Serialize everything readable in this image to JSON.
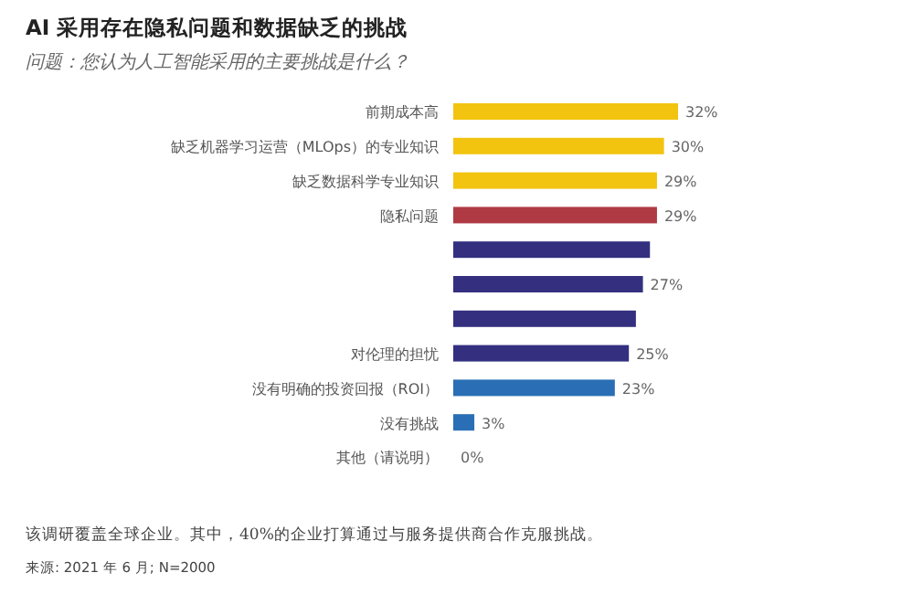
{
  "chart_data": {
    "type": "bar",
    "orientation": "horizontal",
    "title": "AI 采用存在隐私问题和数据缺乏的挑战",
    "subtitle": "问题：您认为人工智能采用的主要挑战是什么？",
    "categories": [
      "前期成本高",
      "缺乏机器学习运营（MLOps）的专业知识",
      "缺乏数据科学专业知识",
      "隐私问题",
      null,
      null,
      null,
      "对伦理的担忧",
      "没有明确的投资回报（ROI）",
      "没有挑战",
      "其他（请说明）"
    ],
    "values": [
      32,
      30,
      29,
      29,
      28,
      27,
      26,
      25,
      23,
      3,
      0
    ],
    "value_labels": [
      "32%",
      "30%",
      "29%",
      "29%",
      null,
      "27%",
      null,
      "25%",
      "23%",
      "3%",
      "0%"
    ],
    "colors": [
      "#f2c40f",
      "#f2c40f",
      "#f2c40f",
      "#b03a44",
      "#34307f",
      "#34307f",
      "#34307f",
      "#34307f",
      "#2a6fb5",
      "#2a6fb5",
      "#2a6fb5"
    ],
    "annotations": [
      "该调研覆盖全球企业。其中，40%的企业打算通过与服务提供商合作克服挑战。",
      "来源: 2021 年 6 月; N=2000"
    ]
  }
}
